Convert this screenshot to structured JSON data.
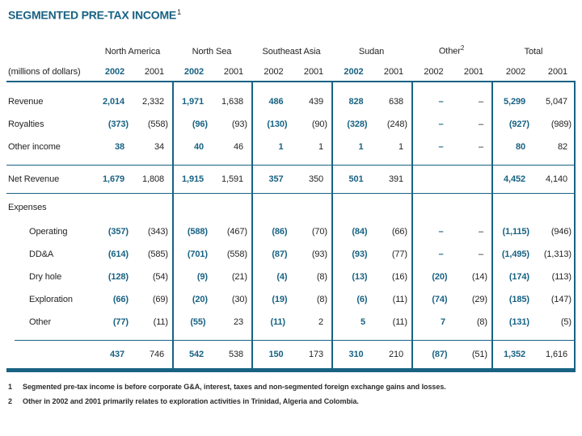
{
  "title": {
    "text": "SEGMENTED PRE-TAX INCOME",
    "footnote_ref": "1"
  },
  "colors": {
    "accent": "#186283",
    "text": "#221F1F"
  },
  "table": {
    "unit_label": "(millions of dollars)",
    "groups": [
      {
        "label": "North America",
        "sup": "",
        "year_2002": "2002",
        "year_2001": "2001",
        "highlight_2002": true
      },
      {
        "label": "North Sea",
        "sup": "",
        "year_2002": "2002",
        "year_2001": "2001",
        "highlight_2002": true
      },
      {
        "label": "Southeast Asia",
        "sup": "",
        "year_2002": "2002",
        "year_2001": "2001",
        "highlight_2002": false
      },
      {
        "label": "Sudan",
        "sup": "",
        "year_2002": "2002",
        "year_2001": "2001",
        "highlight_2002": true
      },
      {
        "label": "Other",
        "sup": "2",
        "year_2002": "2002",
        "year_2001": "2001",
        "highlight_2002": false
      },
      {
        "label": "Total",
        "sup": "",
        "year_2002": "2002",
        "year_2001": "2001",
        "highlight_2002": false
      }
    ],
    "rows": [
      {
        "label": "Revenue",
        "type": "data",
        "indent": false,
        "values": [
          "2,014",
          "2,332",
          "1,971",
          "1,638",
          "486",
          "439",
          "828",
          "638",
          "–",
          "–",
          "5,299",
          "5,047"
        ]
      },
      {
        "label": "Royalties",
        "type": "data",
        "indent": false,
        "values": [
          "(373)",
          "(558)",
          "(96)",
          "(93)",
          "(130)",
          "(90)",
          "(328)",
          "(248)",
          "–",
          "–",
          "(927)",
          "(989)"
        ]
      },
      {
        "label": "Other income",
        "type": "data",
        "indent": false,
        "values": [
          "38",
          "34",
          "40",
          "46",
          "1",
          "1",
          "1",
          "1",
          "–",
          "–",
          "80",
          "82"
        ]
      },
      {
        "label": "Net Revenue",
        "type": "subtotal",
        "indent": false,
        "values": [
          "1,679",
          "1,808",
          "1,915",
          "1,591",
          "357",
          "350",
          "501",
          "391",
          "",
          "",
          "4,452",
          "4,140"
        ]
      },
      {
        "label": "Expenses",
        "type": "section",
        "indent": false,
        "values": []
      },
      {
        "label": "Operating",
        "type": "data",
        "indent": true,
        "values": [
          "(357)",
          "(343)",
          "(588)",
          "(467)",
          "(86)",
          "(70)",
          "(84)",
          "(66)",
          "–",
          "–",
          "(1,115)",
          "(946)"
        ]
      },
      {
        "label": "DD&A",
        "type": "data",
        "indent": true,
        "values": [
          "(614)",
          "(585)",
          "(701)",
          "(558)",
          "(87)",
          "(93)",
          "(93)",
          "(77)",
          "–",
          "–",
          "(1,495)",
          "(1,313)"
        ]
      },
      {
        "label": "Dry hole",
        "type": "data",
        "indent": true,
        "values": [
          "(128)",
          "(54)",
          "(9)",
          "(21)",
          "(4)",
          "(8)",
          "(13)",
          "(16)",
          "(20)",
          "(14)",
          "(174)",
          "(113)"
        ]
      },
      {
        "label": "Exploration",
        "type": "data",
        "indent": true,
        "values": [
          "(66)",
          "(69)",
          "(20)",
          "(30)",
          "(19)",
          "(8)",
          "(6)",
          "(11)",
          "(74)",
          "(29)",
          "(185)",
          "(147)"
        ]
      },
      {
        "label": "Other",
        "type": "data",
        "indent": true,
        "values": [
          "(77)",
          "(11)",
          "(55)",
          "23",
          "(11)",
          "2",
          "5",
          "(11)",
          "7",
          "(8)",
          "(131)",
          "(5)"
        ]
      },
      {
        "label": "",
        "type": "total",
        "indent": false,
        "values": [
          "437",
          "746",
          "542",
          "538",
          "150",
          "173",
          "310",
          "210",
          "(87)",
          "(51)",
          "1,352",
          "1,616"
        ]
      }
    ]
  },
  "footnotes": [
    {
      "ref": "1",
      "text": "Segmented pre-tax income is before corporate G&A, interest, taxes and non-segmented foreign exchange gains and losses."
    },
    {
      "ref": "2",
      "text": "Other in 2002 and 2001 primarily relates to exploration activities in Trinidad, Algeria and Colombia."
    }
  ]
}
